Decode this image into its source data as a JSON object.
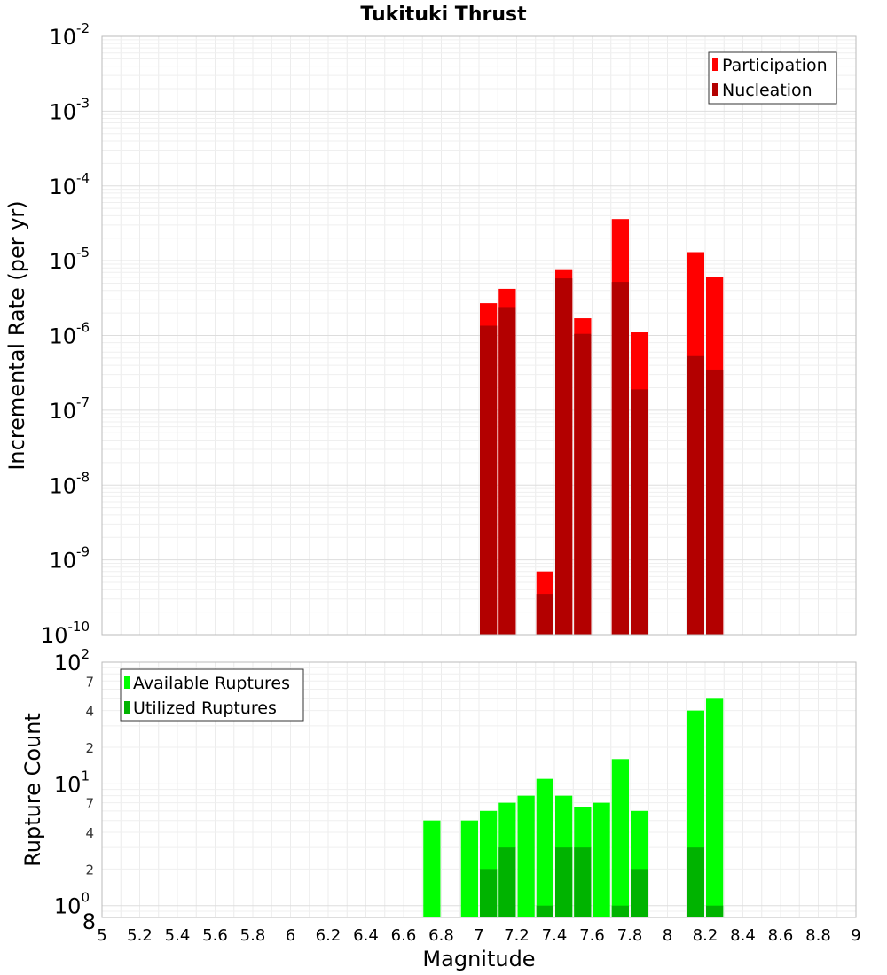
{
  "chart_data": [
    {
      "type": "bar",
      "title": "Tukituki Thrust",
      "xlabel": "Magnitude",
      "ylabel": "Incremental Rate (per yr)",
      "yscale": "log",
      "ylim": [
        1e-10,
        0.01
      ],
      "xlim": [
        5,
        9
      ],
      "x_ticks": [
        "5",
        "5.2",
        "5.4",
        "5.6",
        "5.8",
        "6",
        "6.2",
        "6.4",
        "6.6",
        "6.8",
        "7",
        "7.2",
        "7.4",
        "7.6",
        "7.8",
        "8",
        "8.2",
        "8.4",
        "8.6",
        "8.8",
        "9"
      ],
      "y_ticks": [
        {
          "base": "10",
          "exp": "-10",
          "value": 1e-10
        },
        {
          "base": "10",
          "exp": "-9",
          "value": 1e-09
        },
        {
          "base": "10",
          "exp": "-8",
          "value": 1e-08
        },
        {
          "base": "10",
          "exp": "-7",
          "value": 1e-07
        },
        {
          "base": "10",
          "exp": "-6",
          "value": 1e-06
        },
        {
          "base": "10",
          "exp": "-5",
          "value": 1e-05
        },
        {
          "base": "10",
          "exp": "-4",
          "value": 0.0001
        },
        {
          "base": "10",
          "exp": "-3",
          "value": 0.001
        },
        {
          "base": "10",
          "exp": "-2",
          "value": 0.01
        }
      ],
      "legend_position": "top-right",
      "grid": true,
      "series": [
        {
          "name": "Participation",
          "color": "#ff0000",
          "x": [
            7.05,
            7.15,
            7.35,
            7.45,
            7.55,
            7.75,
            7.85,
            8.15,
            8.25
          ],
          "values": [
            2.7e-06,
            4.2e-06,
            7e-10,
            7.5e-06,
            1.7e-06,
            3.6e-05,
            1.1e-06,
            1.3e-05,
            6e-06
          ]
        },
        {
          "name": "Nucleation",
          "color": "#b30000",
          "x": [
            7.05,
            7.15,
            7.35,
            7.45,
            7.55,
            7.75,
            7.85,
            8.15,
            8.25
          ],
          "values": [
            1.35e-06,
            2.4e-06,
            3.5e-10,
            5.8e-06,
            1.05e-06,
            5.2e-06,
            1.9e-07,
            5.3e-07,
            3.5e-07
          ]
        }
      ]
    },
    {
      "type": "bar",
      "title": "",
      "xlabel": "Magnitude",
      "ylabel": "Rupture Count",
      "yscale": "log",
      "ylim": [
        0.8,
        100
      ],
      "xlim": [
        5,
        9
      ],
      "y_major_ticks": [
        {
          "base": "10",
          "exp": "0",
          "value": 1
        },
        {
          "base": "10",
          "exp": "1",
          "value": 10
        },
        {
          "base": "10",
          "exp": "2",
          "value": 100
        }
      ],
      "y_minor_ticks": [
        {
          "label": "8",
          "value": 0.8
        },
        {
          "label": "2",
          "value": 2
        },
        {
          "label": "4",
          "value": 4
        },
        {
          "label": "7",
          "value": 7
        },
        {
          "label": "2",
          "value": 20
        },
        {
          "label": "4",
          "value": 40
        },
        {
          "label": "7",
          "value": 70
        }
      ],
      "legend_position": "top-left",
      "grid": true,
      "series": [
        {
          "name": "Available Ruptures",
          "color": "#00ff00",
          "x": [
            6.75,
            6.95,
            7.05,
            7.15,
            7.25,
            7.35,
            7.45,
            7.55,
            7.65,
            7.75,
            7.85,
            8.15,
            8.25
          ],
          "values": [
            5,
            5,
            6,
            7,
            8,
            11,
            8,
            6.5,
            7,
            16,
            6,
            40,
            50
          ]
        },
        {
          "name": "Utilized Ruptures",
          "color": "#00b300",
          "x": [
            7.05,
            7.15,
            7.35,
            7.45,
            7.55,
            7.75,
            7.85,
            8.15,
            8.25
          ],
          "values": [
            2,
            3,
            1,
            3,
            3,
            1,
            2,
            3,
            1
          ]
        }
      ]
    }
  ]
}
